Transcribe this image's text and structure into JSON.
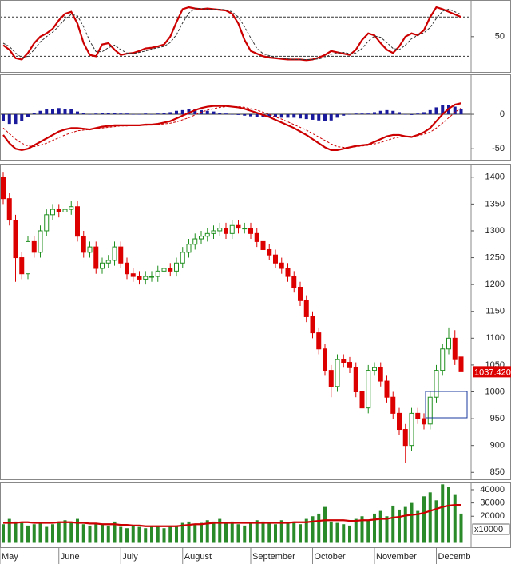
{
  "chart_data": [
    {
      "type": "line",
      "ylim": [
        -4,
        106
      ],
      "yticks": [
        50
      ],
      "levels": [
        20,
        80
      ],
      "series": [
        {
          "color": "#cc0000",
          "values": [
            37,
            30,
            17,
            15,
            25,
            40,
            50,
            55,
            62,
            75,
            85,
            88,
            70,
            40,
            22,
            20,
            38,
            40,
            30,
            22,
            24,
            25,
            28,
            32,
            33,
            35,
            38,
            50,
            72,
            92,
            95,
            93,
            92,
            93,
            92,
            91,
            90,
            85,
            70,
            45,
            28,
            24,
            20,
            18,
            17,
            16,
            15,
            15,
            15,
            14,
            15,
            18,
            22,
            28,
            26,
            24,
            22,
            30,
            45,
            55,
            52,
            40,
            30,
            25,
            35,
            50,
            55,
            52,
            60,
            80,
            95,
            92,
            88,
            84,
            80
          ]
        },
        {
          "color": "#333333",
          "dash": true,
          "values": [
            40,
            35,
            25,
            18,
            20,
            30,
            42,
            50,
            57,
            66,
            77,
            84,
            82,
            65,
            43,
            27,
            27,
            33,
            37,
            30,
            25,
            24,
            26,
            28,
            31,
            33,
            35,
            41,
            53,
            71,
            86,
            93,
            93,
            92,
            92,
            92,
            91,
            88,
            80,
            65,
            48,
            32,
            24,
            21,
            18,
            17,
            16,
            15,
            15,
            15,
            15,
            16,
            18,
            23,
            25,
            26,
            24,
            25,
            32,
            43,
            51,
            49,
            41,
            32,
            30,
            37,
            47,
            52,
            56,
            64,
            78,
            89,
            92,
            88,
            84
          ]
        }
      ]
    },
    {
      "type": "macd",
      "ylim": [
        -66,
        58
      ],
      "yticks": [
        -50,
        0
      ],
      "histogram": {
        "color": "#1a1a9c",
        "values": [
          -10,
          -14,
          -14,
          -10,
          -4,
          2,
          5,
          7,
          8,
          9,
          8,
          7,
          4,
          2,
          0,
          1,
          2,
          2,
          2,
          1,
          1,
          0,
          0,
          1,
          0,
          1,
          2,
          3,
          5,
          6,
          7,
          7,
          6,
          5,
          4,
          2,
          1,
          0,
          -1,
          -2,
          -3,
          -4,
          -4,
          -4,
          -4,
          -5,
          -5,
          -5,
          -6,
          -7,
          -8,
          -9,
          -10,
          -9,
          -5,
          -2,
          0,
          1,
          1,
          1,
          3,
          5,
          6,
          5,
          3,
          0,
          -1,
          1,
          3,
          6,
          10,
          13,
          13,
          11,
          7
        ]
      },
      "series": [
        {
          "color": "#cc0000",
          "values": [
            -30,
            -42,
            -50,
            -52,
            -50,
            -45,
            -40,
            -35,
            -30,
            -25,
            -22,
            -20,
            -20,
            -21,
            -22,
            -20,
            -18,
            -17,
            -16,
            -16,
            -16,
            -16,
            -16,
            -15,
            -15,
            -14,
            -12,
            -10,
            -6,
            -2,
            2,
            6,
            9,
            11,
            12,
            12,
            12,
            11,
            10,
            8,
            5,
            2,
            -1,
            -4,
            -8,
            -12,
            -16,
            -20,
            -25,
            -30,
            -36,
            -42,
            -48,
            -52,
            -52,
            -50,
            -48,
            -46,
            -45,
            -44,
            -40,
            -36,
            -32,
            -30,
            -30,
            -32,
            -33,
            -30,
            -26,
            -20,
            -10,
            0,
            8,
            14,
            16
          ]
        },
        {
          "color": "#cc0000",
          "dash": true,
          "values": [
            -20,
            -28,
            -36,
            -42,
            -46,
            -47,
            -45,
            -42,
            -38,
            -34,
            -30,
            -27,
            -24,
            -23,
            -22,
            -21,
            -20,
            -19,
            -18,
            -17,
            -17,
            -16,
            -16,
            -16,
            -15,
            -15,
            -14,
            -13,
            -11,
            -8,
            -5,
            -1,
            3,
            6,
            8,
            10,
            11,
            11,
            11,
            10,
            8,
            6,
            3,
            0,
            -4,
            -7,
            -11,
            -15,
            -19,
            -23,
            -28,
            -33,
            -38,
            -43,
            -47,
            -48,
            -48,
            -47,
            -46,
            -45,
            -43,
            -41,
            -38,
            -35,
            -33,
            -32,
            -32,
            -31,
            -29,
            -26,
            -20,
            -13,
            -5,
            3,
            9
          ]
        }
      ]
    },
    {
      "type": "candlestick",
      "ylim": [
        837,
        1425
      ],
      "yticks": [
        850,
        900,
        950,
        1000,
        1050,
        1100,
        1150,
        1200,
        1250,
        1300,
        1350,
        1400
      ],
      "up_color": "#1f8f1f",
      "down_color": "#dd0000",
      "last_close_label": "1037.420",
      "open": [
        1400,
        1360,
        1320,
        1250,
        1220,
        1280,
        1260,
        1300,
        1330,
        1340,
        1335,
        1340,
        1345,
        1290,
        1260,
        1270,
        1230,
        1240,
        1245,
        1270,
        1240,
        1220,
        1215,
        1210,
        1215,
        1215,
        1225,
        1230,
        1225,
        1240,
        1260,
        1275,
        1285,
        1290,
        1295,
        1300,
        1305,
        1295,
        1310,
        1305,
        1305,
        1295,
        1280,
        1265,
        1255,
        1240,
        1230,
        1215,
        1195,
        1170,
        1140,
        1110,
        1080,
        1040,
        1010,
        1060,
        1055,
        1045,
        1000,
        970,
        1040,
        1045,
        1020,
        990,
        960,
        930,
        900,
        960,
        950,
        940,
        990,
        1040,
        1080,
        1100,
        1065
      ],
      "high": [
        1410,
        1370,
        1330,
        1260,
        1290,
        1290,
        1310,
        1340,
        1350,
        1350,
        1350,
        1355,
        1355,
        1300,
        1280,
        1280,
        1250,
        1255,
        1280,
        1280,
        1250,
        1230,
        1225,
        1225,
        1225,
        1235,
        1240,
        1240,
        1250,
        1270,
        1285,
        1295,
        1300,
        1305,
        1310,
        1315,
        1315,
        1320,
        1320,
        1315,
        1315,
        1305,
        1290,
        1275,
        1265,
        1250,
        1240,
        1225,
        1205,
        1180,
        1150,
        1120,
        1090,
        1050,
        1070,
        1070,
        1065,
        1055,
        1010,
        1050,
        1055,
        1055,
        1030,
        1000,
        970,
        940,
        970,
        970,
        960,
        1000,
        1050,
        1090,
        1120,
        1115,
        1075
      ],
      "low": [
        1350,
        1310,
        1205,
        1210,
        1210,
        1250,
        1250,
        1290,
        1320,
        1325,
        1325,
        1330,
        1280,
        1250,
        1250,
        1220,
        1220,
        1230,
        1235,
        1230,
        1210,
        1205,
        1200,
        1200,
        1205,
        1205,
        1215,
        1215,
        1215,
        1230,
        1250,
        1265,
        1275,
        1280,
        1285,
        1290,
        1285,
        1285,
        1295,
        1295,
        1285,
        1270,
        1255,
        1245,
        1230,
        1220,
        1205,
        1185,
        1160,
        1130,
        1100,
        1070,
        1030,
        990,
        1000,
        1045,
        1035,
        990,
        955,
        960,
        1030,
        1010,
        980,
        950,
        920,
        868,
        890,
        940,
        930,
        930,
        980,
        1030,
        1070,
        1050,
        1030
      ],
      "close": [
        1360,
        1320,
        1250,
        1220,
        1280,
        1260,
        1300,
        1330,
        1340,
        1335,
        1340,
        1345,
        1290,
        1260,
        1270,
        1230,
        1240,
        1245,
        1270,
        1240,
        1220,
        1215,
        1210,
        1215,
        1215,
        1225,
        1230,
        1225,
        1240,
        1260,
        1275,
        1285,
        1290,
        1295,
        1300,
        1305,
        1295,
        1310,
        1305,
        1305,
        1295,
        1280,
        1265,
        1255,
        1240,
        1230,
        1215,
        1195,
        1170,
        1140,
        1110,
        1080,
        1040,
        1010,
        1060,
        1055,
        1045,
        1000,
        970,
        1040,
        1045,
        1020,
        990,
        960,
        930,
        900,
        960,
        950,
        940,
        990,
        1040,
        1080,
        1100,
        1060,
        1037.42
      ]
    },
    {
      "type": "bar",
      "ylim": [
        -3300,
        46000
      ],
      "yticks": [
        20000,
        30000,
        40000
      ],
      "unit_label": "x10000",
      "color": "#2a8a2a",
      "categories": [
        "May",
        null,
        null,
        null,
        null,
        null,
        null,
        null,
        null,
        "June",
        null,
        null,
        null,
        null,
        null,
        null,
        null,
        null,
        null,
        "July",
        null,
        null,
        null,
        null,
        null,
        null,
        null,
        null,
        null,
        "August",
        null,
        null,
        null,
        null,
        null,
        null,
        null,
        null,
        null,
        null,
        "September",
        null,
        null,
        null,
        null,
        null,
        null,
        null,
        null,
        null,
        "October",
        null,
        null,
        null,
        null,
        null,
        null,
        null,
        null,
        null,
        "November",
        null,
        null,
        null,
        null,
        null,
        null,
        null,
        null,
        null,
        "December",
        null,
        null,
        null,
        null
      ],
      "values": [
        14000,
        18000,
        16000,
        15000,
        13000,
        14000,
        15000,
        12000,
        14000,
        16000,
        17000,
        15000,
        18000,
        14000,
        13000,
        15000,
        14000,
        13000,
        16000,
        12000,
        11000,
        13000,
        12000,
        11000,
        12000,
        13000,
        11000,
        12000,
        13000,
        15000,
        16000,
        14000,
        15000,
        17000,
        16000,
        18000,
        15000,
        16000,
        14000,
        13000,
        15000,
        17000,
        16000,
        15000,
        14000,
        17000,
        15000,
        16000,
        14000,
        18000,
        20000,
        22000,
        27000,
        16000,
        15000,
        14000,
        13000,
        18000,
        20000,
        17000,
        22000,
        24000,
        20000,
        28000,
        25000,
        27000,
        30000,
        24000,
        35000,
        38000,
        32000,
        44000,
        42000,
        36000,
        22000
      ],
      "average": {
        "color": "#cc0000",
        "values": [
          15000,
          15000,
          15000,
          15500,
          15500,
          15000,
          15000,
          15000,
          15000,
          15500,
          15500,
          15500,
          15000,
          15000,
          14500,
          14500,
          14000,
          14000,
          14000,
          13500,
          13500,
          13000,
          13000,
          12500,
          12500,
          12500,
          12500,
          12500,
          12500,
          13000,
          13500,
          14000,
          14000,
          14500,
          15000,
          15000,
          15000,
          15000,
          15000,
          15000,
          15000,
          15000,
          15000,
          15000,
          15000,
          15000,
          15000,
          15500,
          15500,
          15500,
          16000,
          16500,
          17000,
          17000,
          17000,
          17000,
          16500,
          16500,
          17000,
          17000,
          17500,
          18000,
          18000,
          19000,
          19500,
          20500,
          21000,
          21500,
          22500,
          24000,
          25500,
          27000,
          28000,
          28500,
          28500
        ]
      }
    }
  ]
}
